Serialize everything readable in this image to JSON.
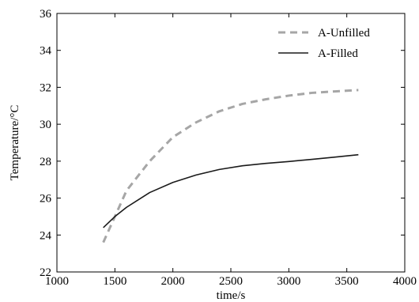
{
  "chart_data": {
    "type": "line",
    "xlabel": "time/s",
    "ylabel": "Temperature/°C",
    "xlim": [
      1000,
      4000
    ],
    "ylim": [
      22,
      36
    ],
    "xticks": [
      1000,
      1500,
      2000,
      2500,
      3000,
      3500,
      4000
    ],
    "yticks": [
      22,
      24,
      26,
      28,
      30,
      32,
      34,
      36
    ],
    "x_tick_labels": [
      "1000",
      "1500",
      "2000",
      "2500",
      "3000",
      "3500",
      "4000"
    ],
    "y_tick_labels": [
      "22",
      "24",
      "26",
      "28",
      "30",
      "32",
      "34",
      "36"
    ],
    "grid": false,
    "legend_position": "top-right",
    "series": [
      {
        "name": "A-Unfilled",
        "style": "dashed",
        "color": "#a6a6a6",
        "x": [
          1400,
          1500,
          1600,
          1800,
          2000,
          2200,
          2400,
          2600,
          2800,
          3000,
          3200,
          3400,
          3600
        ],
        "y": [
          23.6,
          25.0,
          26.4,
          28.0,
          29.3,
          30.1,
          30.7,
          31.1,
          31.35,
          31.55,
          31.7,
          31.78,
          31.85
        ]
      },
      {
        "name": "A-Filled",
        "style": "solid",
        "color": "#1a1a1a",
        "x": [
          1400,
          1500,
          1600,
          1800,
          2000,
          2200,
          2400,
          2600,
          2800,
          3000,
          3200,
          3400,
          3600
        ],
        "y": [
          24.4,
          25.0,
          25.5,
          26.3,
          26.85,
          27.25,
          27.55,
          27.75,
          27.88,
          27.98,
          28.1,
          28.22,
          28.35
        ]
      }
    ]
  }
}
